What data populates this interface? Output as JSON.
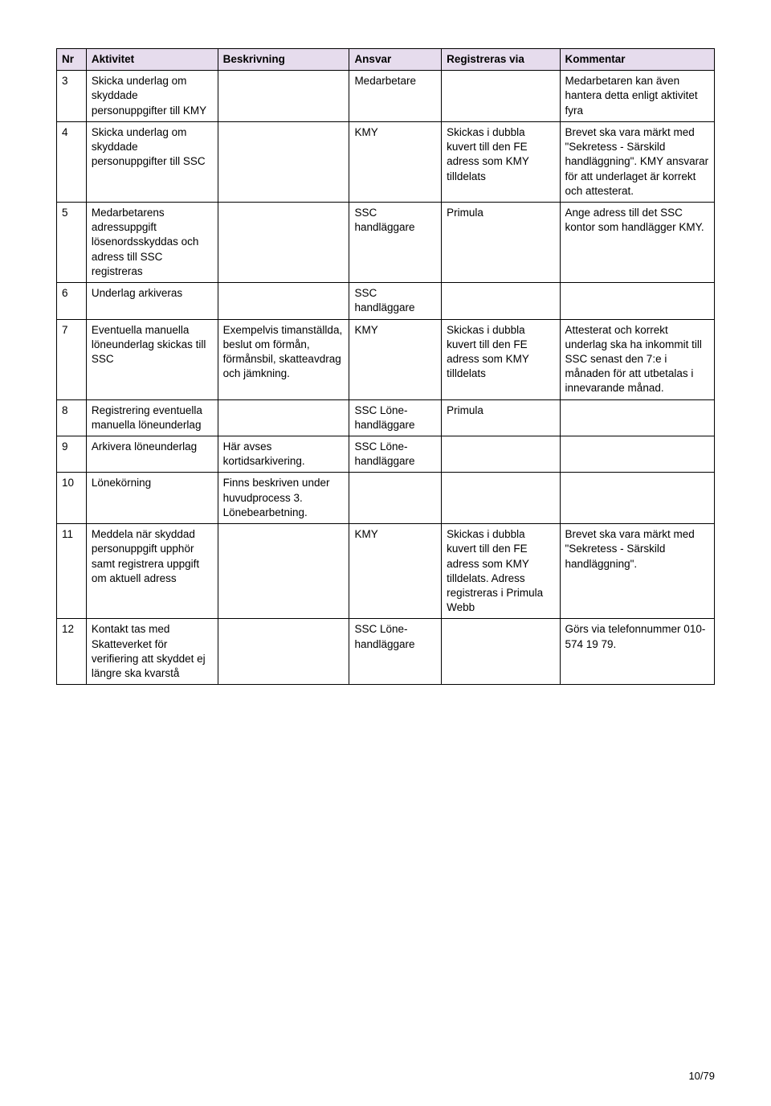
{
  "headers": {
    "nr": "Nr",
    "aktivitet": "Aktivitet",
    "beskrivning": "Beskrivning",
    "ansvar": "Ansvar",
    "registreras": "Registreras via",
    "kommentar": "Kommentar"
  },
  "rows": [
    {
      "nr": "3",
      "aktivitet": "Skicka underlag om skyddade personuppgifter till KMY",
      "beskrivning": "",
      "ansvar": "Medarbetare",
      "registreras": "",
      "kommentar": "Medarbetaren kan även hantera detta enligt aktivitet fyra"
    },
    {
      "nr": "4",
      "aktivitet": "Skicka underlag om skyddade personuppgifter till SSC",
      "beskrivning": "",
      "ansvar": "KMY",
      "registreras": "Skickas i dubbla kuvert till den FE adress som KMY tilldelats",
      "kommentar": "Brevet ska vara märkt med \"Sekretess - Särskild handläggning\". KMY ansvarar för att underlaget är korrekt och attesterat."
    },
    {
      "nr": "5",
      "aktivitet": "Medarbetarens adressuppgift lösenordsskyddas och adress till SSC registreras",
      "beskrivning": "",
      "ansvar": "SSC handläggare",
      "registreras": "Primula",
      "kommentar": "Ange adress till det SSC kontor som handlägger KMY."
    },
    {
      "nr": "6",
      "aktivitet": "Underlag arkiveras",
      "beskrivning": "",
      "ansvar": "SSC handläggare",
      "registreras": "",
      "kommentar": ""
    },
    {
      "nr": "7",
      "aktivitet": "Eventuella manuella löneunderlag skickas till SSC",
      "beskrivning": "Exempelvis timanställda, beslut om förmån, förmånsbil, skatteavdrag och jämkning.",
      "ansvar": "KMY",
      "registreras": "Skickas i dubbla kuvert till den FE adress som KMY tilldelats",
      "kommentar": "Attesterat och korrekt underlag ska ha inkommit till SSC senast den 7:e i månaden för att utbetalas i innevarande månad."
    },
    {
      "nr": "8",
      "aktivitet": "Registrering eventuella manuella löneunderlag",
      "beskrivning": "",
      "ansvar": "SSC Löne-handläggare",
      "registreras": "Primula",
      "kommentar": ""
    },
    {
      "nr": "9",
      "aktivitet": "Arkivera löneunderlag",
      "beskrivning": "Här avses kortidsarkivering.",
      "ansvar": "SSC Löne-handläggare",
      "registreras": "",
      "kommentar": ""
    },
    {
      "nr": "10",
      "aktivitet": "Lönekörning",
      "beskrivning": "Finns beskriven under huvudprocess 3. Lönebearbetning.",
      "ansvar": "",
      "registreras": "",
      "kommentar": ""
    },
    {
      "nr": "11",
      "aktivitet": "Meddela när skyddad personuppgift upphör samt registrera uppgift om aktuell adress",
      "beskrivning": "",
      "ansvar": "KMY",
      "registreras": "Skickas i dubbla kuvert till den FE adress som KMY tilldelats. Adress registreras i Primula Webb",
      "kommentar": "Brevet ska vara märkt med \"Sekretess - Särskild handläggning\"."
    },
    {
      "nr": "12",
      "aktivitet": "Kontakt tas med Skatteverket för verifiering att skyddet ej längre ska kvarstå",
      "beskrivning": "",
      "ansvar": "SSC Löne-handläggare",
      "registreras": "",
      "kommentar": "Görs via telefonnummer 010-574 19 79."
    }
  ],
  "pageNumber": "10/79"
}
